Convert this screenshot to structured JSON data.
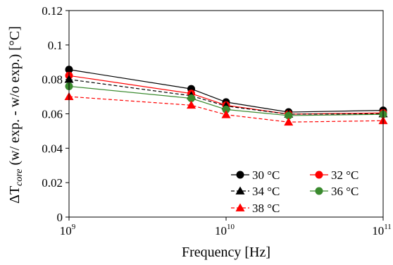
{
  "chart_data": {
    "type": "line",
    "title": "",
    "xlabel": "Frequency [Hz]",
    "ylabel": {
      "prefix": "ΔT",
      "subscript": "core",
      "suffix": " (w/ exp. - w/o exp.) [°C]"
    },
    "x": [
      1000000000,
      6000000000,
      10000000000,
      25000000000,
      100000000000
    ],
    "xscale": "log",
    "xlim": [
      1000000000,
      100000000000
    ],
    "xticks": [
      {
        "base": "10",
        "exp": "9"
      },
      {
        "base": "10",
        "exp": "10"
      },
      {
        "base": "10",
        "exp": "11"
      }
    ],
    "ylim": [
      0,
      0.12
    ],
    "yticks": [
      "0",
      "0.02",
      "0.04",
      "0.06",
      "0.08",
      "0.1",
      "0.12"
    ],
    "grid": false,
    "legend_position": "lower-right inside",
    "series": [
      {
        "name": "30 °C",
        "color": "#000000",
        "dash": "solid",
        "marker": "circle",
        "values": [
          0.0857,
          0.0745,
          0.0668,
          0.061,
          0.062
        ]
      },
      {
        "name": "32 °C",
        "color": "#ff0000",
        "dash": "solid",
        "marker": "circle",
        "values": [
          0.0822,
          0.0718,
          0.065,
          0.0598,
          0.0605
        ]
      },
      {
        "name": "34 °C",
        "color": "#000000",
        "dash": "dashed",
        "marker": "triangle",
        "values": [
          0.08,
          0.0705,
          0.0645,
          0.0598,
          0.06
        ]
      },
      {
        "name": "36 °C",
        "color": "#3a8a2e",
        "dash": "solid",
        "marker": "circle",
        "values": [
          0.076,
          0.069,
          0.0625,
          0.059,
          0.0597
        ]
      },
      {
        "name": "38 °C",
        "color": "#ff0000",
        "dash": "dashed",
        "marker": "triangle",
        "values": [
          0.07,
          0.065,
          0.0595,
          0.0552,
          0.056
        ]
      }
    ]
  }
}
